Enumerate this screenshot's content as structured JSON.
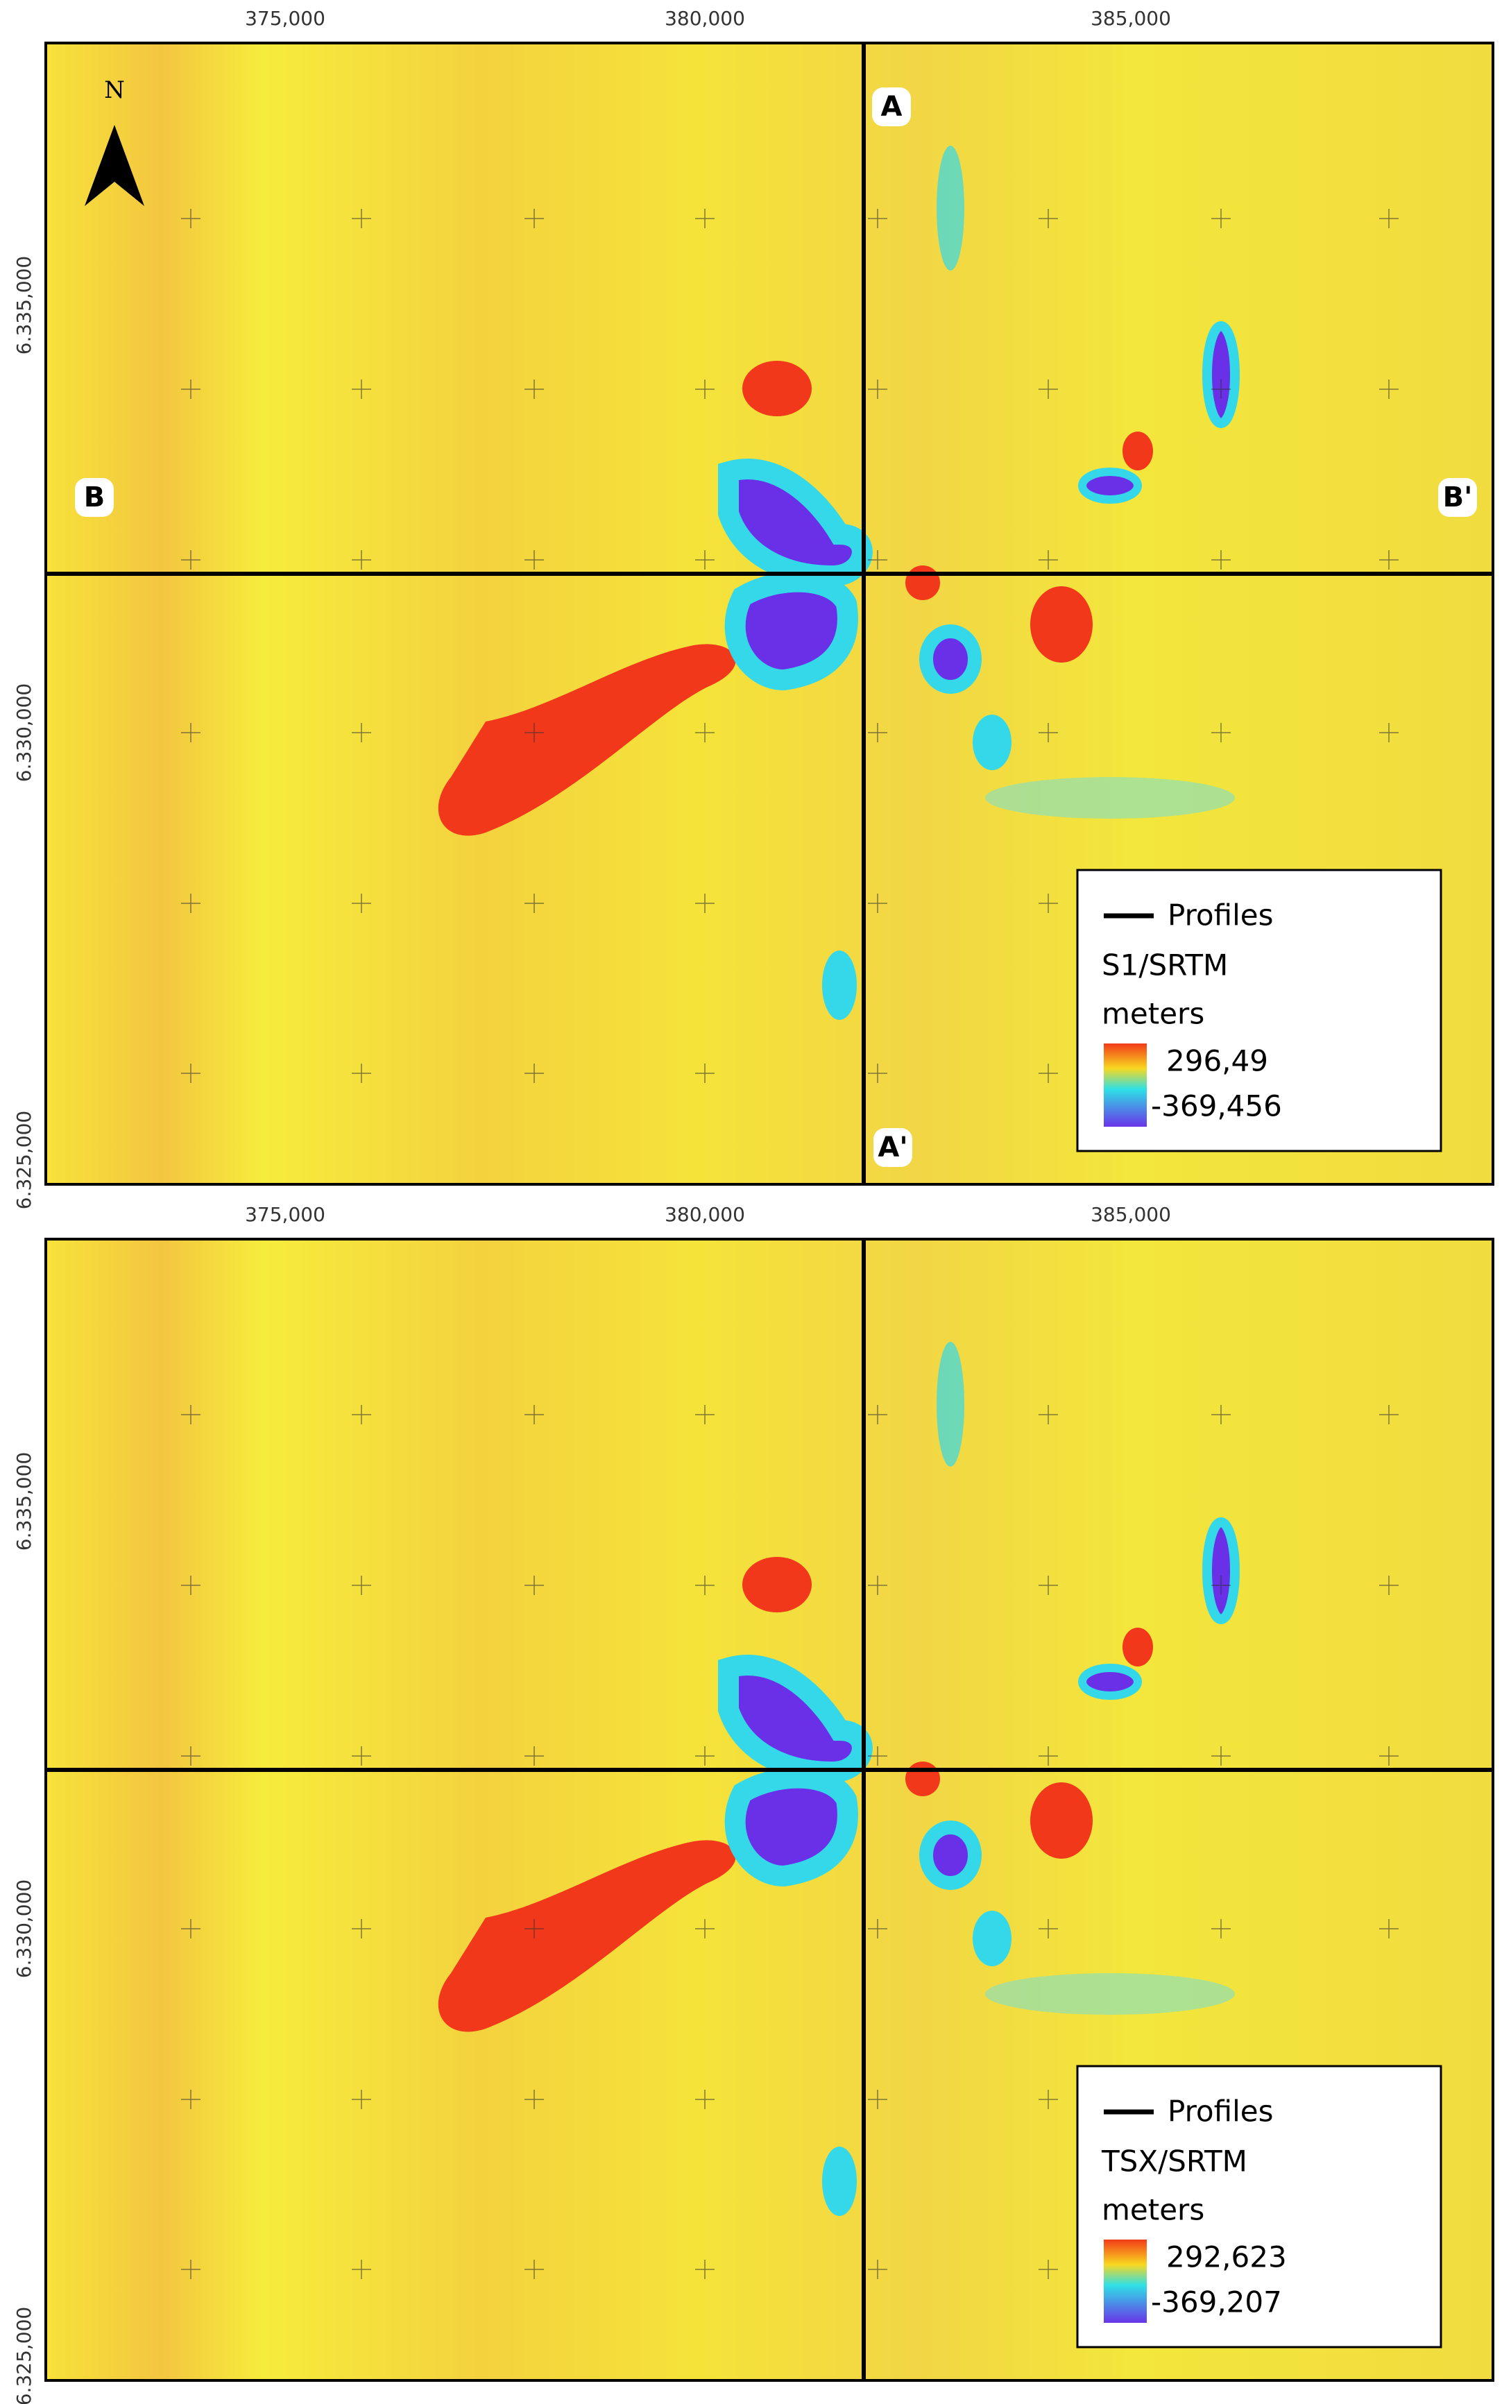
{
  "north_label": "N",
  "panels": [
    {
      "x_ticks": [
        "375,000",
        "380,000",
        "385,000"
      ],
      "y_ticks": [
        "6.335,000",
        "6.330,000",
        "6.325,000"
      ],
      "profile_labels": [
        "A",
        "A'",
        "B",
        "B'"
      ],
      "legend": {
        "line_label": "Profiles",
        "layer": "S1/SRTM",
        "unit": "meters",
        "max": "296,49",
        "min": "-369,456"
      }
    },
    {
      "x_ticks": [
        "375,000",
        "380,000",
        "385,000"
      ],
      "y_ticks": [
        "6.335,000",
        "6.330,000",
        "6.325,000"
      ],
      "legend": {
        "line_label": "Profiles",
        "layer": "TSX/SRTM",
        "unit": "meters",
        "max": "292,623",
        "min": "-369,207"
      }
    }
  ]
}
